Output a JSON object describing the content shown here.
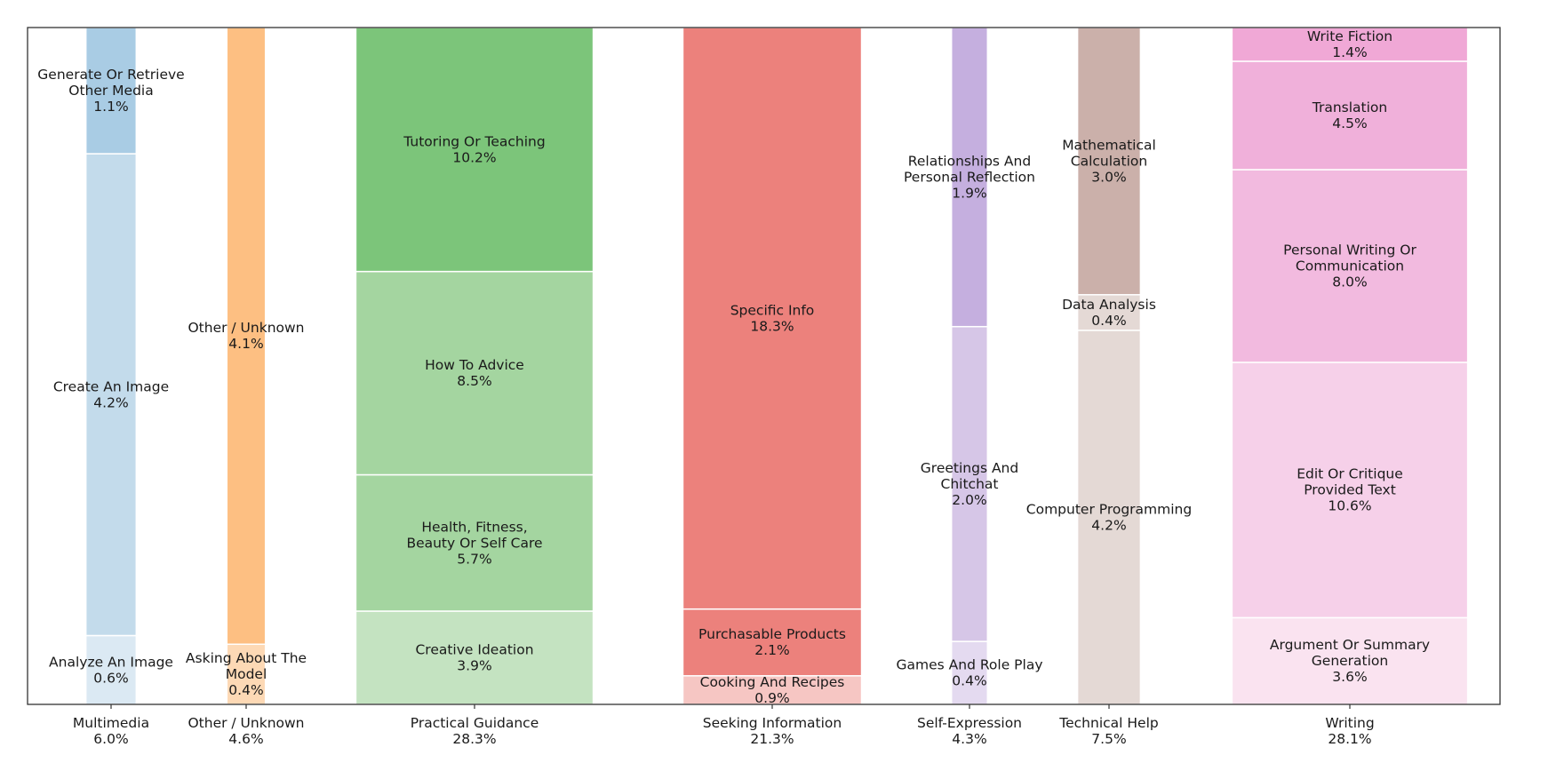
{
  "chart_data": {
    "type": "bar",
    "subtype": "marimekko (variable-width stacked bars, each bar normalized to 100% height)",
    "title": "",
    "xlabel": "",
    "ylabel": "",
    "grid": false,
    "legend": "none",
    "unit": "%",
    "groups": [
      {
        "name": "Multimedia",
        "total": "6.0%",
        "value": 6.0,
        "segments": [
          {
            "label": "Analyze An Image",
            "value": 0.6,
            "text": "0.6%",
            "color": "#dbe9f3"
          },
          {
            "label": "Create An Image",
            "value": 4.2,
            "text": "4.2%",
            "color": "#c3dbeb"
          },
          {
            "label": "Generate Or Retrieve\nOther Media",
            "value": 1.1,
            "text": "1.1%",
            "color": "#a9cce4"
          }
        ]
      },
      {
        "name": "Other / Unknown",
        "total": "4.6%",
        "value": 4.6,
        "segments": [
          {
            "label": "Asking About The\nModel",
            "value": 0.4,
            "text": "0.4%",
            "color": "#fdd9b5"
          },
          {
            "label": "Other / Unknown",
            "value": 4.1,
            "text": "4.1%",
            "color": "#fdbf82"
          }
        ]
      },
      {
        "name": "Practical Guidance",
        "total": "28.3%",
        "value": 28.3,
        "segments": [
          {
            "label": "Creative Ideation",
            "value": 3.9,
            "text": "3.9%",
            "color": "#c4e3c1"
          },
          {
            "label": "Health, Fitness,\nBeauty Or Self Care",
            "value": 5.7,
            "text": "5.7%",
            "color": "#a4d5a0"
          },
          {
            "label": "How To Advice",
            "value": 8.5,
            "text": "8.5%",
            "color": "#a4d5a0"
          },
          {
            "label": "Tutoring Or Teaching",
            "value": 10.2,
            "text": "10.2%",
            "color": "#7cc57a"
          }
        ]
      },
      {
        "name": "Seeking Information",
        "total": "21.3%",
        "value": 21.3,
        "segments": [
          {
            "label": "Cooking And Recipes",
            "value": 0.9,
            "text": "0.9%",
            "color": "#f6c6c3"
          },
          {
            "label": "Purchasable Products",
            "value": 2.1,
            "text": "2.1%",
            "color": "#ec817c"
          },
          {
            "label": "Specific Info",
            "value": 18.3,
            "text": "18.3%",
            "color": "#ec817c"
          }
        ]
      },
      {
        "name": "Self-Expression",
        "total": "4.3%",
        "value": 4.3,
        "segments": [
          {
            "label": "Games And Role Play",
            "value": 0.4,
            "text": "0.4%",
            "color": "#e4daf0"
          },
          {
            "label": "Greetings And\nChitchat",
            "value": 2.0,
            "text": "2.0%",
            "color": "#d6c6e7"
          },
          {
            "label": "Relationships And\nPersonal Reflection",
            "value": 1.9,
            "text": "1.9%",
            "color": "#c5afdf"
          }
        ]
      },
      {
        "name": "Technical Help",
        "total": "7.5%",
        "value": 7.5,
        "segments": [
          {
            "label": "Computer Programming",
            "value": 4.2,
            "text": "4.2%",
            "color": "#e4d9d5"
          },
          {
            "label": "Data Analysis",
            "value": 0.4,
            "text": "0.4%",
            "color": "#e4d9d5"
          },
          {
            "label": "Mathematical\nCalculation",
            "value": 3.0,
            "text": "3.0%",
            "color": "#cbb0aa"
          }
        ]
      },
      {
        "name": "Writing",
        "total": "28.1%",
        "value": 28.1,
        "segments": [
          {
            "label": "Argument Or Summary\nGeneration",
            "value": 3.6,
            "text": "3.6%",
            "color": "#fae3f0"
          },
          {
            "label": "Edit Or Critique\nProvided Text",
            "value": 10.6,
            "text": "10.6%",
            "color": "#f6d0e9"
          },
          {
            "label": "Personal Writing Or\nCommunication",
            "value": 8.0,
            "text": "8.0%",
            "color": "#f2badf"
          },
          {
            "label": "Translation",
            "value": 4.5,
            "text": "4.5%",
            "color": "#f0b0da"
          },
          {
            "label": "Write Fiction",
            "value": 1.4,
            "text": "1.4%",
            "color": "#f0a8d6"
          }
        ]
      }
    ]
  }
}
